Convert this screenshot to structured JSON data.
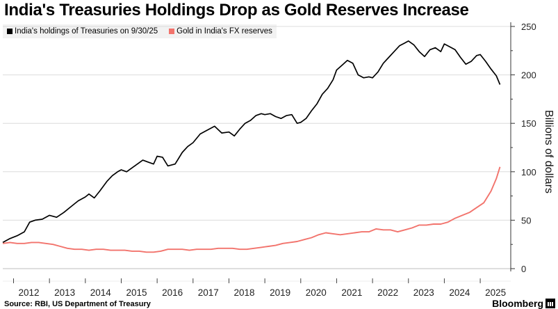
{
  "title": "India's Treasuries Holdings Drop as Gold Reserves Increase",
  "source": "Source: RBI, US Department of Treasury",
  "brand": "Bloomberg",
  "brand_icon": "bloomberg-logo-icon",
  "chart_data": {
    "type": "line",
    "title": "India's Treasuries Holdings Drop as Gold Reserves Increase",
    "ylabel": "Billions of dollars",
    "ylim": [
      0,
      250
    ],
    "yticks": [
      0,
      50,
      100,
      150,
      200,
      250
    ],
    "xlim": [
      2011.7,
      2025.85
    ],
    "xticks": [
      2012,
      2013,
      2014,
      2015,
      2016,
      2017,
      2018,
      2019,
      2020,
      2021,
      2022,
      2023,
      2024,
      2025
    ],
    "grid": true,
    "legend_position": "top-left",
    "series": [
      {
        "name": "India's holdings of Treasuries on 9/30/25",
        "color": "#000000",
        "x": [
          2011.7,
          2011.9,
          2012.1,
          2012.3,
          2012.45,
          2012.6,
          2012.8,
          2013.0,
          2013.2,
          2013.4,
          2013.6,
          2013.8,
          2014.0,
          2014.1,
          2014.25,
          2014.4,
          2014.6,
          2014.75,
          2014.9,
          2015.0,
          2015.15,
          2015.3,
          2015.45,
          2015.6,
          2015.75,
          2015.9,
          2016.0,
          2016.15,
          2016.3,
          2016.5,
          2016.7,
          2016.85,
          2017.0,
          2017.2,
          2017.4,
          2017.6,
          2017.8,
          2018.0,
          2018.15,
          2018.3,
          2018.45,
          2018.6,
          2018.75,
          2018.9,
          2019.0,
          2019.15,
          2019.3,
          2019.45,
          2019.6,
          2019.75,
          2019.9,
          2020.0,
          2020.15,
          2020.3,
          2020.45,
          2020.6,
          2020.75,
          2020.9,
          2021.0,
          2021.15,
          2021.3,
          2021.45,
          2021.6,
          2021.75,
          2021.9,
          2022.0,
          2022.15,
          2022.3,
          2022.45,
          2022.6,
          2022.75,
          2022.9,
          2023.0,
          2023.15,
          2023.3,
          2023.45,
          2023.6,
          2023.75,
          2023.9,
          2024.0,
          2024.15,
          2024.3,
          2024.45,
          2024.6,
          2024.75,
          2024.9,
          2025.0,
          2025.15,
          2025.3,
          2025.45,
          2025.55
        ],
        "values": [
          27,
          31,
          34,
          38,
          48,
          50,
          51,
          55,
          53,
          58,
          64,
          70,
          74,
          77,
          73,
          80,
          90,
          96,
          100,
          102,
          100,
          104,
          108,
          112,
          110,
          108,
          116,
          115,
          106,
          108,
          120,
          126,
          130,
          139,
          143,
          147,
          140,
          141,
          137,
          144,
          150,
          153,
          158,
          160,
          159,
          160,
          157,
          155,
          158,
          159,
          150,
          151,
          155,
          163,
          170,
          180,
          186,
          195,
          205,
          210,
          215,
          212,
          200,
          197,
          198,
          197,
          203,
          212,
          218,
          224,
          230,
          233,
          235,
          231,
          224,
          219,
          226,
          228,
          224,
          232,
          229,
          226,
          218,
          211,
          214,
          220,
          221,
          214,
          206,
          199,
          190
        ]
      },
      {
        "name": "Gold in India's FX reserves",
        "color": "#f2736c",
        "x": [
          2011.7,
          2011.9,
          2012.1,
          2012.3,
          2012.5,
          2012.7,
          2012.9,
          2013.1,
          2013.3,
          2013.5,
          2013.7,
          2013.9,
          2014.1,
          2014.3,
          2014.5,
          2014.7,
          2014.9,
          2015.1,
          2015.3,
          2015.5,
          2015.7,
          2015.9,
          2016.1,
          2016.3,
          2016.5,
          2016.7,
          2016.9,
          2017.1,
          2017.3,
          2017.5,
          2017.7,
          2017.9,
          2018.1,
          2018.3,
          2018.5,
          2018.7,
          2018.9,
          2019.1,
          2019.3,
          2019.5,
          2019.7,
          2019.9,
          2020.1,
          2020.3,
          2020.5,
          2020.7,
          2020.9,
          2021.1,
          2021.3,
          2021.5,
          2021.7,
          2021.9,
          2022.1,
          2022.3,
          2022.5,
          2022.7,
          2022.9,
          2023.1,
          2023.3,
          2023.5,
          2023.7,
          2023.9,
          2024.1,
          2024.3,
          2024.5,
          2024.7,
          2024.9,
          2025.1,
          2025.3,
          2025.45,
          2025.55
        ],
        "values": [
          26,
          27,
          26,
          26,
          27,
          27,
          26,
          25,
          23,
          21,
          20,
          20,
          19,
          20,
          20,
          19,
          19,
          19,
          18,
          18,
          17,
          17,
          18,
          20,
          20,
          20,
          19,
          20,
          20,
          20,
          21,
          21,
          21,
          20,
          20,
          21,
          22,
          23,
          24,
          26,
          27,
          28,
          30,
          32,
          35,
          37,
          36,
          35,
          36,
          37,
          38,
          38,
          41,
          40,
          40,
          38,
          40,
          42,
          45,
          45,
          46,
          46,
          48,
          52,
          55,
          58,
          63,
          68,
          80,
          93,
          105
        ]
      }
    ]
  }
}
